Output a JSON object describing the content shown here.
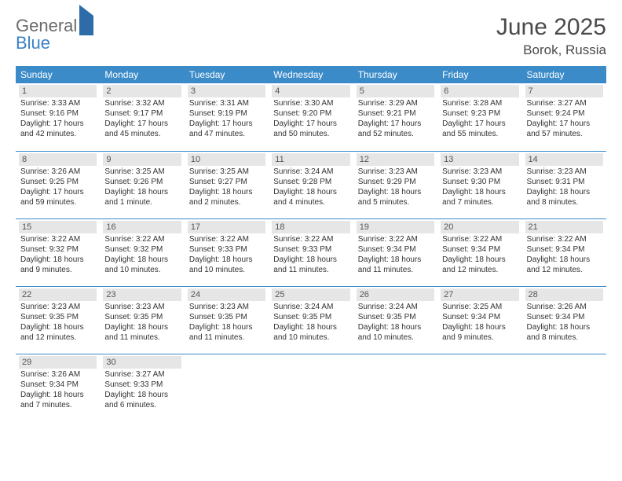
{
  "logo": {
    "general": "General",
    "blue": "Blue"
  },
  "title": "June 2025",
  "location": "Borok, Russia",
  "colors": {
    "header_bg": "#3b8bc9",
    "header_text": "#ffffff",
    "border": "#3b8bc9",
    "daynum_bg": "#e6e6e6",
    "body_text": "#333333",
    "title_text": "#4a4a4a"
  },
  "day_headers": [
    "Sunday",
    "Monday",
    "Tuesday",
    "Wednesday",
    "Thursday",
    "Friday",
    "Saturday"
  ],
  "weeks": [
    [
      {
        "n": "1",
        "sr": "Sunrise: 3:33 AM",
        "ss": "Sunset: 9:16 PM",
        "d1": "Daylight: 17 hours",
        "d2": "and 42 minutes."
      },
      {
        "n": "2",
        "sr": "Sunrise: 3:32 AM",
        "ss": "Sunset: 9:17 PM",
        "d1": "Daylight: 17 hours",
        "d2": "and 45 minutes."
      },
      {
        "n": "3",
        "sr": "Sunrise: 3:31 AM",
        "ss": "Sunset: 9:19 PM",
        "d1": "Daylight: 17 hours",
        "d2": "and 47 minutes."
      },
      {
        "n": "4",
        "sr": "Sunrise: 3:30 AM",
        "ss": "Sunset: 9:20 PM",
        "d1": "Daylight: 17 hours",
        "d2": "and 50 minutes."
      },
      {
        "n": "5",
        "sr": "Sunrise: 3:29 AM",
        "ss": "Sunset: 9:21 PM",
        "d1": "Daylight: 17 hours",
        "d2": "and 52 minutes."
      },
      {
        "n": "6",
        "sr": "Sunrise: 3:28 AM",
        "ss": "Sunset: 9:23 PM",
        "d1": "Daylight: 17 hours",
        "d2": "and 55 minutes."
      },
      {
        "n": "7",
        "sr": "Sunrise: 3:27 AM",
        "ss": "Sunset: 9:24 PM",
        "d1": "Daylight: 17 hours",
        "d2": "and 57 minutes."
      }
    ],
    [
      {
        "n": "8",
        "sr": "Sunrise: 3:26 AM",
        "ss": "Sunset: 9:25 PM",
        "d1": "Daylight: 17 hours",
        "d2": "and 59 minutes."
      },
      {
        "n": "9",
        "sr": "Sunrise: 3:25 AM",
        "ss": "Sunset: 9:26 PM",
        "d1": "Daylight: 18 hours",
        "d2": "and 1 minute."
      },
      {
        "n": "10",
        "sr": "Sunrise: 3:25 AM",
        "ss": "Sunset: 9:27 PM",
        "d1": "Daylight: 18 hours",
        "d2": "and 2 minutes."
      },
      {
        "n": "11",
        "sr": "Sunrise: 3:24 AM",
        "ss": "Sunset: 9:28 PM",
        "d1": "Daylight: 18 hours",
        "d2": "and 4 minutes."
      },
      {
        "n": "12",
        "sr": "Sunrise: 3:23 AM",
        "ss": "Sunset: 9:29 PM",
        "d1": "Daylight: 18 hours",
        "d2": "and 5 minutes."
      },
      {
        "n": "13",
        "sr": "Sunrise: 3:23 AM",
        "ss": "Sunset: 9:30 PM",
        "d1": "Daylight: 18 hours",
        "d2": "and 7 minutes."
      },
      {
        "n": "14",
        "sr": "Sunrise: 3:23 AM",
        "ss": "Sunset: 9:31 PM",
        "d1": "Daylight: 18 hours",
        "d2": "and 8 minutes."
      }
    ],
    [
      {
        "n": "15",
        "sr": "Sunrise: 3:22 AM",
        "ss": "Sunset: 9:32 PM",
        "d1": "Daylight: 18 hours",
        "d2": "and 9 minutes."
      },
      {
        "n": "16",
        "sr": "Sunrise: 3:22 AM",
        "ss": "Sunset: 9:32 PM",
        "d1": "Daylight: 18 hours",
        "d2": "and 10 minutes."
      },
      {
        "n": "17",
        "sr": "Sunrise: 3:22 AM",
        "ss": "Sunset: 9:33 PM",
        "d1": "Daylight: 18 hours",
        "d2": "and 10 minutes."
      },
      {
        "n": "18",
        "sr": "Sunrise: 3:22 AM",
        "ss": "Sunset: 9:33 PM",
        "d1": "Daylight: 18 hours",
        "d2": "and 11 minutes."
      },
      {
        "n": "19",
        "sr": "Sunrise: 3:22 AM",
        "ss": "Sunset: 9:34 PM",
        "d1": "Daylight: 18 hours",
        "d2": "and 11 minutes."
      },
      {
        "n": "20",
        "sr": "Sunrise: 3:22 AM",
        "ss": "Sunset: 9:34 PM",
        "d1": "Daylight: 18 hours",
        "d2": "and 12 minutes."
      },
      {
        "n": "21",
        "sr": "Sunrise: 3:22 AM",
        "ss": "Sunset: 9:34 PM",
        "d1": "Daylight: 18 hours",
        "d2": "and 12 minutes."
      }
    ],
    [
      {
        "n": "22",
        "sr": "Sunrise: 3:23 AM",
        "ss": "Sunset: 9:35 PM",
        "d1": "Daylight: 18 hours",
        "d2": "and 12 minutes."
      },
      {
        "n": "23",
        "sr": "Sunrise: 3:23 AM",
        "ss": "Sunset: 9:35 PM",
        "d1": "Daylight: 18 hours",
        "d2": "and 11 minutes."
      },
      {
        "n": "24",
        "sr": "Sunrise: 3:23 AM",
        "ss": "Sunset: 9:35 PM",
        "d1": "Daylight: 18 hours",
        "d2": "and 11 minutes."
      },
      {
        "n": "25",
        "sr": "Sunrise: 3:24 AM",
        "ss": "Sunset: 9:35 PM",
        "d1": "Daylight: 18 hours",
        "d2": "and 10 minutes."
      },
      {
        "n": "26",
        "sr": "Sunrise: 3:24 AM",
        "ss": "Sunset: 9:35 PM",
        "d1": "Daylight: 18 hours",
        "d2": "and 10 minutes."
      },
      {
        "n": "27",
        "sr": "Sunrise: 3:25 AM",
        "ss": "Sunset: 9:34 PM",
        "d1": "Daylight: 18 hours",
        "d2": "and 9 minutes."
      },
      {
        "n": "28",
        "sr": "Sunrise: 3:26 AM",
        "ss": "Sunset: 9:34 PM",
        "d1": "Daylight: 18 hours",
        "d2": "and 8 minutes."
      }
    ],
    [
      {
        "n": "29",
        "sr": "Sunrise: 3:26 AM",
        "ss": "Sunset: 9:34 PM",
        "d1": "Daylight: 18 hours",
        "d2": "and 7 minutes."
      },
      {
        "n": "30",
        "sr": "Sunrise: 3:27 AM",
        "ss": "Sunset: 9:33 PM",
        "d1": "Daylight: 18 hours",
        "d2": "and 6 minutes."
      },
      null,
      null,
      null,
      null,
      null
    ]
  ]
}
